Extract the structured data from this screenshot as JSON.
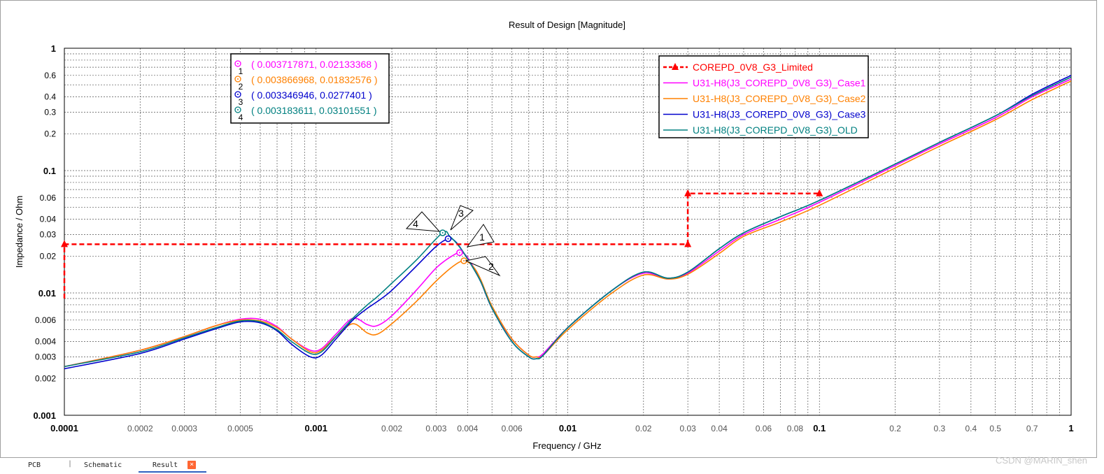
{
  "tabs": [
    {
      "label": "PCB",
      "active": false
    },
    {
      "label": "Schematic",
      "active": false
    },
    {
      "label": "Result",
      "active": true
    }
  ],
  "tab_separator": "|",
  "tab_close_glyph": "×",
  "watermark": "CSDN @MARIN_shen",
  "chart_data": {
    "type": "line",
    "title": "Result of Design [Magnitude]",
    "xlabel": "Frequency / GHz",
    "ylabel": "Impedance / Ohm",
    "xscale": "log",
    "yscale": "log",
    "xlim": [
      0.0001,
      1
    ],
    "ylim": [
      0.001,
      1
    ],
    "x_major_ticks": [
      {
        "value": 0.0001,
        "label": "0.0001"
      },
      {
        "value": 0.001,
        "label": "0.001"
      },
      {
        "value": 0.01,
        "label": "0.01"
      },
      {
        "value": 0.1,
        "label": "0.1"
      },
      {
        "value": 1,
        "label": "1"
      }
    ],
    "x_minor_ticks": [
      {
        "value": 0.0002,
        "label": "0.0002"
      },
      {
        "value": 0.0003,
        "label": "0.0003"
      },
      {
        "value": 0.0005,
        "label": "0.0005"
      },
      {
        "value": 0.002,
        "label": "0.002"
      },
      {
        "value": 0.003,
        "label": "0.003"
      },
      {
        "value": 0.004,
        "label": "0.004"
      },
      {
        "value": 0.006,
        "label": "0.006"
      },
      {
        "value": 0.02,
        "label": "0.02"
      },
      {
        "value": 0.03,
        "label": "0.03"
      },
      {
        "value": 0.04,
        "label": "0.04"
      },
      {
        "value": 0.06,
        "label": "0.06"
      },
      {
        "value": 0.08,
        "label": "0.08"
      },
      {
        "value": 0.2,
        "label": "0.2"
      },
      {
        "value": 0.3,
        "label": "0.3"
      },
      {
        "value": 0.4,
        "label": "0.4"
      },
      {
        "value": 0.5,
        "label": "0.5"
      },
      {
        "value": 0.7,
        "label": "0.7"
      }
    ],
    "y_major_ticks": [
      {
        "value": 0.001,
        "label": "0.001"
      },
      {
        "value": 0.01,
        "label": "0.01"
      },
      {
        "value": 0.1,
        "label": "0.1"
      },
      {
        "value": 1,
        "label": "1"
      }
    ],
    "y_minor_ticks": [
      {
        "value": 0.002,
        "label": "0.002"
      },
      {
        "value": 0.003,
        "label": "0.003"
      },
      {
        "value": 0.004,
        "label": "0.004"
      },
      {
        "value": 0.006,
        "label": "0.006"
      },
      {
        "value": 0.02,
        "label": "0.02"
      },
      {
        "value": 0.03,
        "label": "0.03"
      },
      {
        "value": 0.04,
        "label": "0.04"
      },
      {
        "value": 0.06,
        "label": "0.06"
      },
      {
        "value": 0.2,
        "label": "0.2"
      },
      {
        "value": 0.3,
        "label": "0.3"
      },
      {
        "value": 0.4,
        "label": "0.4"
      },
      {
        "value": 0.6,
        "label": "0.6"
      }
    ],
    "grid": true,
    "legend": {
      "placement": "top-right",
      "entries": [
        {
          "name": "COREPD_0V8_G3_Limited",
          "color": "#ff0000",
          "style": "dashed-triangle"
        },
        {
          "name": "U31-H8(J3_COREPD_0V8_G3)_Case1",
          "color": "#ff00ff",
          "style": "solid"
        },
        {
          "name": "U31-H8(J3_COREPD_0V8_G3)_Case2",
          "color": "#ff8000",
          "style": "solid"
        },
        {
          "name": "U31-H8(J3_COREPD_0V8_G3)_Case3",
          "color": "#0000cc",
          "style": "solid"
        },
        {
          "name": "U31-H8(J3_COREPD_0V8_G3)_OLD",
          "color": "#008080",
          "style": "solid"
        }
      ]
    },
    "series": [
      {
        "name": "COREPD_0V8_G3_Limited",
        "color": "#ff0000",
        "x": [
          0.0001,
          0.0001,
          0.03,
          0.03,
          0.1
        ],
        "y": [
          0.009,
          0.025,
          0.025,
          0.065,
          0.065
        ],
        "markers": [
          [
            0.0001,
            0.025
          ],
          [
            0.03,
            0.025
          ],
          [
            0.03,
            0.065
          ],
          [
            0.1,
            0.065
          ]
        ]
      },
      {
        "name": "U31-H8(J3_COREPD_0V8_G3)_Case1",
        "color": "#ff00ff",
        "x": [
          0.0001,
          0.0002,
          0.0003,
          0.0004,
          0.0005,
          0.0006,
          0.0007,
          0.0008,
          0.00095,
          0.00105,
          0.0012,
          0.0014,
          0.0016,
          0.00175,
          0.002,
          0.0025,
          0.003,
          0.0034,
          0.00372,
          0.004,
          0.0045,
          0.005,
          0.006,
          0.007,
          0.0075,
          0.008,
          0.01,
          0.015,
          0.02,
          0.025,
          0.03,
          0.04,
          0.05,
          0.07,
          0.1,
          0.2,
          0.3,
          0.5,
          0.7,
          1
        ],
        "y": [
          0.0025,
          0.0034,
          0.0044,
          0.0054,
          0.0061,
          0.0061,
          0.0053,
          0.0042,
          0.0034,
          0.0035,
          0.0046,
          0.0062,
          0.0055,
          0.0054,
          0.0065,
          0.0105,
          0.016,
          0.0195,
          0.0213,
          0.0195,
          0.0125,
          0.0075,
          0.0042,
          0.0031,
          0.003,
          0.0032,
          0.0052,
          0.0105,
          0.0145,
          0.013,
          0.0145,
          0.022,
          0.03,
          0.04,
          0.055,
          0.11,
          0.165,
          0.27,
          0.4,
          0.56
        ]
      },
      {
        "name": "U31-H8(J3_COREPD_0V8_G3)_Case2",
        "color": "#ff8000",
        "x": [
          0.0001,
          0.0002,
          0.0003,
          0.0004,
          0.0005,
          0.0006,
          0.0007,
          0.0008,
          0.00095,
          0.00105,
          0.0012,
          0.0014,
          0.0016,
          0.00175,
          0.002,
          0.0025,
          0.003,
          0.0035,
          0.00387,
          0.0042,
          0.0045,
          0.005,
          0.006,
          0.007,
          0.0075,
          0.008,
          0.01,
          0.015,
          0.02,
          0.025,
          0.03,
          0.04,
          0.05,
          0.07,
          0.1,
          0.2,
          0.3,
          0.5,
          0.7,
          1
        ],
        "y": [
          0.0025,
          0.0034,
          0.0044,
          0.0054,
          0.006,
          0.0059,
          0.0052,
          0.0042,
          0.0033,
          0.0034,
          0.0044,
          0.0056,
          0.0047,
          0.0046,
          0.0056,
          0.0085,
          0.0125,
          0.0165,
          0.0183,
          0.0165,
          0.013,
          0.0078,
          0.0042,
          0.0031,
          0.003,
          0.0031,
          0.005,
          0.01,
          0.014,
          0.013,
          0.0142,
          0.021,
          0.029,
          0.038,
          0.052,
          0.105,
          0.158,
          0.26,
          0.38,
          0.54
        ]
      },
      {
        "name": "U31-H8(J3_COREPD_0V8_G3)_Case3",
        "color": "#0000cc",
        "x": [
          0.0001,
          0.0002,
          0.0003,
          0.0004,
          0.0005,
          0.0006,
          0.0007,
          0.0008,
          0.00095,
          0.00105,
          0.0012,
          0.0014,
          0.0016,
          0.00175,
          0.002,
          0.0025,
          0.003,
          0.00335,
          0.0036,
          0.004,
          0.0045,
          0.005,
          0.006,
          0.007,
          0.0075,
          0.008,
          0.01,
          0.015,
          0.02,
          0.025,
          0.03,
          0.04,
          0.05,
          0.07,
          0.1,
          0.2,
          0.3,
          0.5,
          0.7,
          1
        ],
        "y": [
          0.0024,
          0.0032,
          0.0042,
          0.0051,
          0.0058,
          0.0057,
          0.0049,
          0.0038,
          0.003,
          0.0031,
          0.0042,
          0.006,
          0.0075,
          0.0085,
          0.0105,
          0.0165,
          0.024,
          0.0277,
          0.026,
          0.019,
          0.0125,
          0.0075,
          0.004,
          0.003,
          0.0029,
          0.0031,
          0.0052,
          0.0105,
          0.0148,
          0.0132,
          0.0148,
          0.023,
          0.031,
          0.042,
          0.057,
          0.113,
          0.17,
          0.28,
          0.42,
          0.6
        ]
      },
      {
        "name": "U31-H8(J3_COREPD_0V8_G3)_OLD",
        "color": "#008080",
        "x": [
          0.0001,
          0.0002,
          0.0003,
          0.0004,
          0.0005,
          0.0006,
          0.0007,
          0.0008,
          0.00095,
          0.00105,
          0.0012,
          0.0014,
          0.0016,
          0.00175,
          0.002,
          0.0025,
          0.00318,
          0.0034,
          0.0037,
          0.004,
          0.0045,
          0.005,
          0.006,
          0.007,
          0.0075,
          0.008,
          0.01,
          0.015,
          0.02,
          0.025,
          0.03,
          0.04,
          0.05,
          0.07,
          0.1,
          0.2,
          0.3,
          0.5,
          0.7,
          1
        ],
        "y": [
          0.0025,
          0.0033,
          0.0043,
          0.0052,
          0.0059,
          0.0058,
          0.005,
          0.004,
          0.0032,
          0.0033,
          0.0044,
          0.0062,
          0.008,
          0.0093,
          0.012,
          0.0185,
          0.031,
          0.029,
          0.024,
          0.019,
          0.0125,
          0.0075,
          0.004,
          0.003,
          0.0029,
          0.0031,
          0.0052,
          0.0105,
          0.0148,
          0.0132,
          0.0148,
          0.023,
          0.031,
          0.042,
          0.057,
          0.113,
          0.17,
          0.28,
          0.41,
          0.58
        ]
      }
    ],
    "markers": [
      {
        "id": "1",
        "x": 0.003717871,
        "y": 0.02133368,
        "color": "#ff00ff",
        "readout": "( 0.003717871, 0.02133368 )"
      },
      {
        "id": "2",
        "x": 0.003866968,
        "y": 0.01832576,
        "color": "#ff8000",
        "readout": "( 0.003866968, 0.01832576 )"
      },
      {
        "id": "3",
        "x": 0.003346946,
        "y": 0.0277401,
        "color": "#0000cc",
        "readout": "( 0.003346946, 0.0277401 )"
      },
      {
        "id": "4",
        "x": 0.003183611,
        "y": 0.03101551,
        "color": "#008080",
        "readout": "( 0.003183611, 0.03101551 )"
      }
    ]
  }
}
